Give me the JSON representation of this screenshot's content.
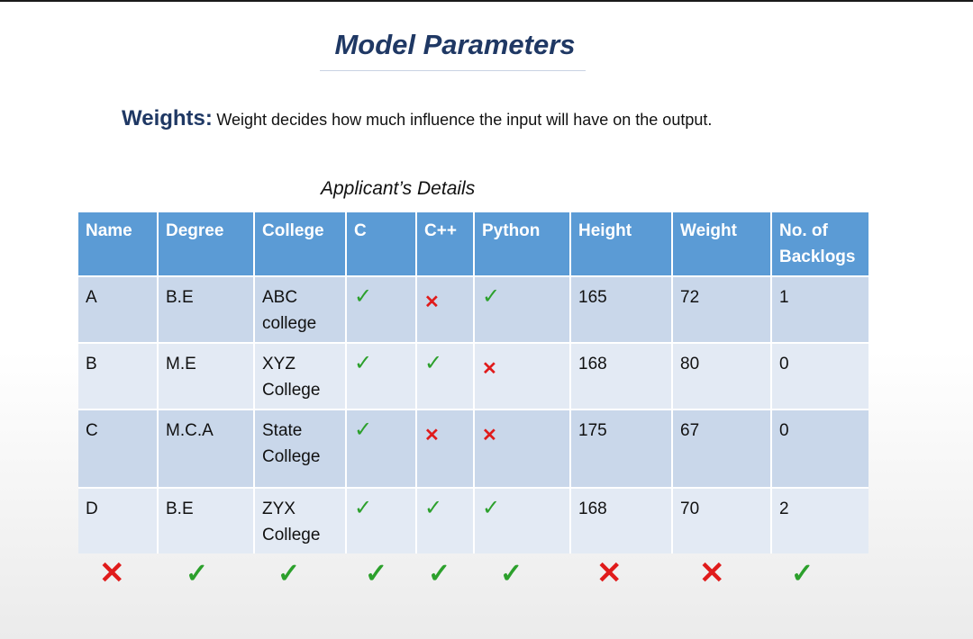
{
  "title": "Model Parameters",
  "weights_label": "Weights:",
  "weights_text": "Weight decides how much influence the input will have on the output.",
  "subtitle": "Applicant’s Details",
  "headers": [
    "Name",
    "Degree",
    "College",
    "C",
    "C++",
    "Python",
    "Height",
    "Weight",
    "No. of Backlogs"
  ],
  "rows": [
    {
      "name": "A",
      "degree": "B.E",
      "college": "ABC college",
      "c": "yes",
      "cpp": "no",
      "python": "yes",
      "height": "165",
      "weight": "72",
      "backlogs": "1"
    },
    {
      "name": "B",
      "degree": "M.E",
      "college": "XYZ College",
      "c": "yes",
      "cpp": "yes",
      "python": "no",
      "height": "168",
      "weight": "80",
      "backlogs": "0"
    },
    {
      "name": "C",
      "degree": "M.C.A",
      "college": "State College",
      "c": "yes",
      "cpp": "no",
      "python": "no",
      "height": "175",
      "weight": "67",
      "backlogs": "0"
    },
    {
      "name": "D",
      "degree": "B.E",
      "college": "ZYX College",
      "c": "yes",
      "cpp": "yes",
      "python": "yes",
      "height": "168",
      "weight": "70",
      "backlogs": "2"
    }
  ],
  "relevance": [
    "no",
    "yes",
    "yes",
    "yes",
    "yes",
    "yes",
    "no",
    "no",
    "yes"
  ],
  "symbols": {
    "yes": "✓",
    "no": "✕"
  },
  "colors": {
    "header_bg": "#5b9bd5",
    "row_odd": "#c9d7ea",
    "row_even": "#e3eaf4",
    "check": "#2ca02c",
    "cross": "#e01b1b",
    "title": "#1f3864"
  }
}
